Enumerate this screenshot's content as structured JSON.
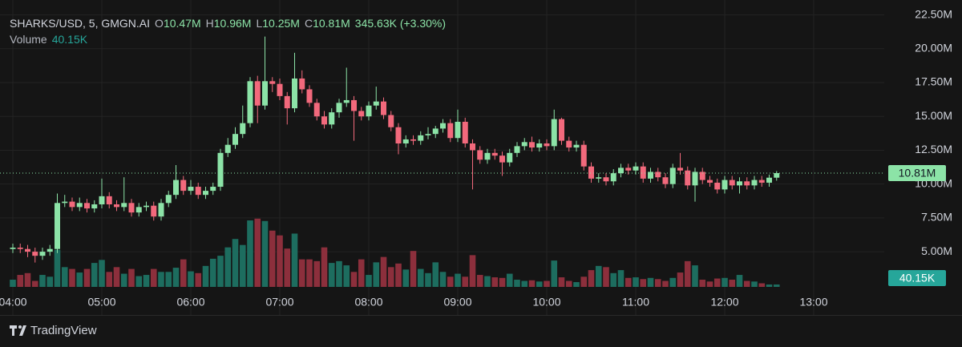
{
  "chart_data": {
    "type": "candlestick",
    "legend": {
      "symbol": "SHARKS/USD, 5, GMGN.AI",
      "items": [
        {
          "key": "O",
          "value": "10.47M"
        },
        {
          "key": "H",
          "value": "10.96M"
        },
        {
          "key": "L",
          "value": "10.25M"
        },
        {
          "key": "C",
          "value": "10.81M"
        }
      ],
      "change": "345.63K (+3.30%)",
      "volume_key": "Volume",
      "volume_value": "40.15K"
    },
    "up_color": "#8ce3a7",
    "down_color": "#f2697c",
    "volume_up_color": "#1d6d5f",
    "volume_down_color": "#8c2f3c",
    "open": [
      5.2,
      5.3,
      5.2,
      5.0,
      4.7,
      5.0,
      5.2,
      8.6,
      8.7,
      8.3,
      8.6,
      8.2,
      8.5,
      9.1,
      8.5,
      8.3,
      8.6,
      7.9,
      8.3,
      8.4,
      7.6,
      8.6,
      9.2,
      10.3,
      9.5,
      9.8,
      9.2,
      9.5,
      9.8,
      12.3,
      12.9,
      13.7,
      14.5,
      17.6,
      15.8,
      17.6,
      17.4,
      16.5,
      15.6,
      17.8,
      17.0,
      16.0,
      15.0,
      14.4,
      15.3,
      16.0,
      16.2,
      15.4,
      15.0,
      15.8,
      16.1,
      15.1,
      14.2,
      13.0,
      13.3,
      13.2,
      13.6,
      13.7,
      14.1,
      14.5,
      13.4,
      14.6,
      13.0,
      12.5,
      11.8,
      12.3,
      12.1,
      11.6,
      12.3,
      12.8,
      13.1,
      12.7,
      13.0,
      12.8,
      14.8,
      13.2,
      12.7,
      12.9,
      11.3,
      10.4,
      10.5,
      10.2,
      10.8,
      11.2,
      11.0,
      11.3,
      10.4,
      10.9,
      10.5,
      10.0,
      11.2,
      11.0,
      9.9,
      10.9,
      10.3,
      10.1,
      9.6,
      10.3,
      9.9,
      10.2,
      9.9,
      10.3,
      10.1,
      10.47
    ],
    "high": [
      5.6,
      5.6,
      5.5,
      5.3,
      5.3,
      5.5,
      9.3,
      9.2,
      9.0,
      9.0,
      8.9,
      8.8,
      10.4,
      9.4,
      8.8,
      10.5,
      8.9,
      8.6,
      8.7,
      8.7,
      8.9,
      9.5,
      11.4,
      10.6,
      10.3,
      10.1,
      9.8,
      10.1,
      12.6,
      13.4,
      14.2,
      15.8,
      17.9,
      18.0,
      20.9,
      17.9,
      17.8,
      16.8,
      19.7,
      18.4,
      17.3,
      16.3,
      15.4,
      15.6,
      16.3,
      18.6,
      16.5,
      15.7,
      16.1,
      17.2,
      16.4,
      15.4,
      14.5,
      13.6,
      13.6,
      13.9,
      14.2,
      14.3,
      14.8,
      14.8,
      15.5,
      14.9,
      13.3,
      12.8,
      12.6,
      12.6,
      12.4,
      12.6,
      13.1,
      13.4,
      13.5,
      13.3,
      13.3,
      15.5,
      14.9,
      13.5,
      13.2,
      13.2,
      11.6,
      10.8,
      10.8,
      11.1,
      11.5,
      11.5,
      11.6,
      11.6,
      11.2,
      11.2,
      10.8,
      11.5,
      12.3,
      11.3,
      11.2,
      11.2,
      10.6,
      10.4,
      10.6,
      10.6,
      10.5,
      10.5,
      10.6,
      10.6,
      10.7,
      10.96
    ],
    "low": [
      4.9,
      4.9,
      4.6,
      4.2,
      4.4,
      4.7,
      4.9,
      8.3,
      8.0,
      8.0,
      7.9,
      7.9,
      8.2,
      8.2,
      8.0,
      8.0,
      7.6,
      7.6,
      8.0,
      7.3,
      7.3,
      8.3,
      8.9,
      9.2,
      9.2,
      8.9,
      8.9,
      9.2,
      9.5,
      12.0,
      12.6,
      13.4,
      14.2,
      14.5,
      15.5,
      16.8,
      16.2,
      14.4,
      15.3,
      16.7,
      15.7,
      14.7,
      14.1,
      14.1,
      14.9,
      15.7,
      13.2,
      14.7,
      14.7,
      15.5,
      14.8,
      13.9,
      12.2,
      12.7,
      12.9,
      12.9,
      13.3,
      13.4,
      13.8,
      13.1,
      13.1,
      12.7,
      9.6,
      11.5,
      11.5,
      11.8,
      10.6,
      11.3,
      12.0,
      12.5,
      12.4,
      12.4,
      12.5,
      12.5,
      12.9,
      12.4,
      12.4,
      11.0,
      10.1,
      10.1,
      9.9,
      9.9,
      10.5,
      10.7,
      10.7,
      10.1,
      10.1,
      10.2,
      9.7,
      9.7,
      10.7,
      9.6,
      8.7,
      10.0,
      9.8,
      9.3,
      9.3,
      9.6,
      9.3,
      9.6,
      9.6,
      9.8,
      9.8,
      10.25
    ],
    "close": [
      5.3,
      5.2,
      5.0,
      4.7,
      5.0,
      5.2,
      8.6,
      8.7,
      8.3,
      8.6,
      8.2,
      8.5,
      9.1,
      8.5,
      8.3,
      8.6,
      7.9,
      8.3,
      8.4,
      7.6,
      8.6,
      9.2,
      10.3,
      9.5,
      9.8,
      9.2,
      9.5,
      9.8,
      12.3,
      12.9,
      13.7,
      14.5,
      17.6,
      15.8,
      17.6,
      17.4,
      16.5,
      15.6,
      17.8,
      17.0,
      16.0,
      15.0,
      14.4,
      15.3,
      16.0,
      16.2,
      15.4,
      15.0,
      15.8,
      16.1,
      15.1,
      14.2,
      13.0,
      13.3,
      13.2,
      13.6,
      13.7,
      14.1,
      14.5,
      13.4,
      14.6,
      13.0,
      12.5,
      11.8,
      12.3,
      12.1,
      11.6,
      12.3,
      12.8,
      13.1,
      12.7,
      13.0,
      12.8,
      14.8,
      13.2,
      12.7,
      12.9,
      11.3,
      10.4,
      10.5,
      10.2,
      10.8,
      11.2,
      11.0,
      11.3,
      10.4,
      10.9,
      10.5,
      10.0,
      11.2,
      11.0,
      9.9,
      10.9,
      10.3,
      10.1,
      9.6,
      10.3,
      9.9,
      10.2,
      9.9,
      10.3,
      10.1,
      10.47,
      10.81
    ],
    "volume": [
      120,
      200,
      230,
      100,
      200,
      170,
      620,
      330,
      300,
      240,
      300,
      400,
      450,
      250,
      330,
      220,
      300,
      180,
      200,
      300,
      250,
      250,
      320,
      460,
      260,
      230,
      350,
      470,
      520,
      660,
      800,
      700,
      1110,
      1140,
      1100,
      940,
      860,
      640,
      890,
      460,
      460,
      430,
      660,
      400,
      430,
      360,
      250,
      460,
      200,
      410,
      500,
      330,
      390,
      290,
      600,
      300,
      230,
      410,
      250,
      170,
      220,
      170,
      530,
      200,
      180,
      160,
      150,
      220,
      120,
      100,
      110,
      90,
      100,
      440,
      160,
      100,
      80,
      170,
      280,
      350,
      330,
      230,
      280,
      150,
      160,
      130,
      150,
      130,
      100,
      150,
      240,
      430,
      360,
      120,
      90,
      140,
      150,
      120,
      200,
      100,
      90,
      60,
      40,
      40.15
    ],
    "ylim": [
      2.4,
      23.6
    ],
    "volume_ylim": [
      0,
      4790
    ],
    "yticks": [
      {
        "value": 5,
        "label": "5.00M"
      },
      {
        "value": 7.5,
        "label": "7.50M"
      },
      {
        "value": 10,
        "label": "10.00M"
      },
      {
        "value": 12.5,
        "label": "12.50M"
      },
      {
        "value": 15,
        "label": "15.00M"
      },
      {
        "value": 17.5,
        "label": "17.50M"
      },
      {
        "value": 20,
        "label": "20.00M"
      },
      {
        "value": 22.5,
        "label": "22.50M"
      }
    ],
    "xticks": [
      {
        "value": 0,
        "label": "04:00"
      },
      {
        "value": 12,
        "label": "05:00"
      },
      {
        "value": 24,
        "label": "06:00"
      },
      {
        "value": 36,
        "label": "07:00"
      },
      {
        "value": 48,
        "label": "08:00"
      },
      {
        "value": 60,
        "label": "09:00"
      },
      {
        "value": 72,
        "label": "10:00"
      },
      {
        "value": 84,
        "label": "11:00"
      },
      {
        "value": 96,
        "label": "12:00"
      },
      {
        "value": 108,
        "label": "13:00"
      }
    ],
    "last_price": {
      "value": 10.81,
      "label": "10.81M"
    },
    "last_volume": {
      "value": 40.15,
      "label": "40.15K"
    },
    "grid": true,
    "brand": "TradingView"
  }
}
